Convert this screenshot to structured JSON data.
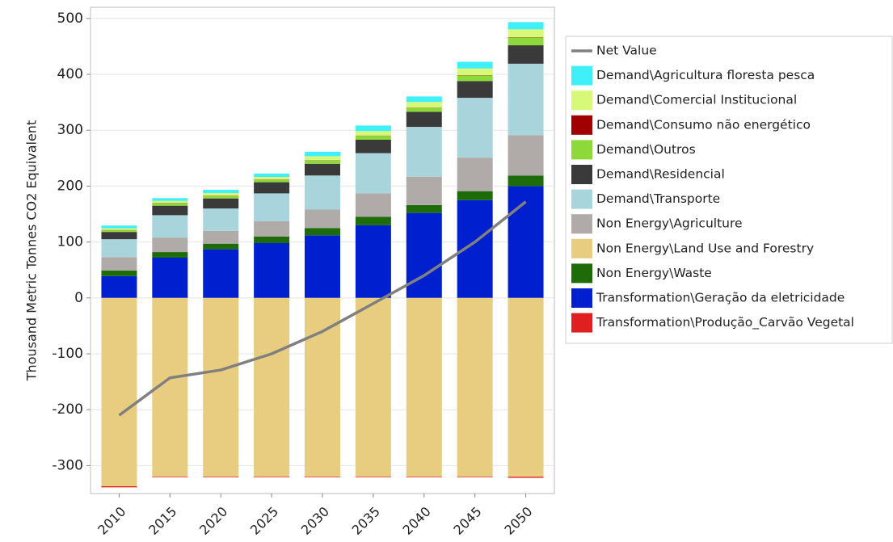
{
  "chart_data": {
    "type": "bar",
    "stacked": true,
    "y_label": "Thousand Metric Tonnes CO2 Equivalent",
    "categories": [
      "2010",
      "2015",
      "2020",
      "2025",
      "2030",
      "2035",
      "2040",
      "2045",
      "2050"
    ],
    "ylim": [
      -350,
      520
    ],
    "yticks": [
      -300,
      -200,
      -100,
      0,
      100,
      200,
      300,
      400,
      500
    ],
    "grid": true,
    "series": [
      {
        "name": "Net Value",
        "type": "line",
        "color": "#808080",
        "values": [
          -210,
          -143,
          -129,
          -100,
          -60,
          -10,
          40,
          100,
          172
        ]
      },
      {
        "name": "Demand\\Agricultura floresta pesca",
        "color": "#40f0f8",
        "values": [
          5,
          5,
          6,
          6,
          8,
          10,
          10,
          12,
          13
        ]
      },
      {
        "name": "Demand\\Comercial Institucional",
        "color": "#d8f878",
        "values": [
          3,
          4,
          5,
          5,
          7,
          8,
          10,
          12,
          14
        ]
      },
      {
        "name": "Demand\\Consumo não energético",
        "color": "#a00000",
        "values": [
          0.5,
          0.5,
          0.5,
          0.5,
          0.5,
          0.5,
          0.5,
          0.5,
          0.5
        ]
      },
      {
        "name": "Demand\\Outros",
        "color": "#8ed93a",
        "values": [
          3,
          4,
          4,
          4,
          6,
          7,
          7,
          10,
          14
        ]
      },
      {
        "name": "Demand\\Residencial",
        "color": "#3a3a3a",
        "values": [
          13,
          17,
          18,
          20,
          21,
          24,
          27,
          30,
          33
        ]
      },
      {
        "name": "Demand\\Transporte",
        "color": "#a8d4dc",
        "values": [
          32,
          40,
          40,
          50,
          61,
          72,
          89,
          107,
          128
        ]
      },
      {
        "name": "Non Energy\\Agriculture",
        "color": "#b0aaa8",
        "values": [
          24,
          26,
          23,
          27,
          33,
          42,
          51,
          60,
          72
        ]
      },
      {
        "name": "Non Energy\\Land Use and Forestry",
        "color": "#e8cc80",
        "values": [
          -337,
          -320,
          -320,
          -320,
          -320,
          -320,
          -320,
          -320,
          -320
        ]
      },
      {
        "name": "Non Energy\\Waste",
        "color": "#1e6b0a",
        "values": [
          10,
          10,
          10,
          12,
          13,
          15,
          14,
          16,
          19
        ]
      },
      {
        "name": "Transformation\\Geração da eletricidade",
        "color": "#0020d0",
        "values": [
          39,
          72,
          87,
          98,
          112,
          130,
          152,
          175,
          200
        ]
      },
      {
        "name": "Transformation\\Produção_Carvão Vegetal",
        "color": "#e02020",
        "values": [
          -2,
          -1,
          -1,
          -1,
          -1,
          -1,
          -1,
          -1,
          -2
        ]
      }
    ]
  }
}
